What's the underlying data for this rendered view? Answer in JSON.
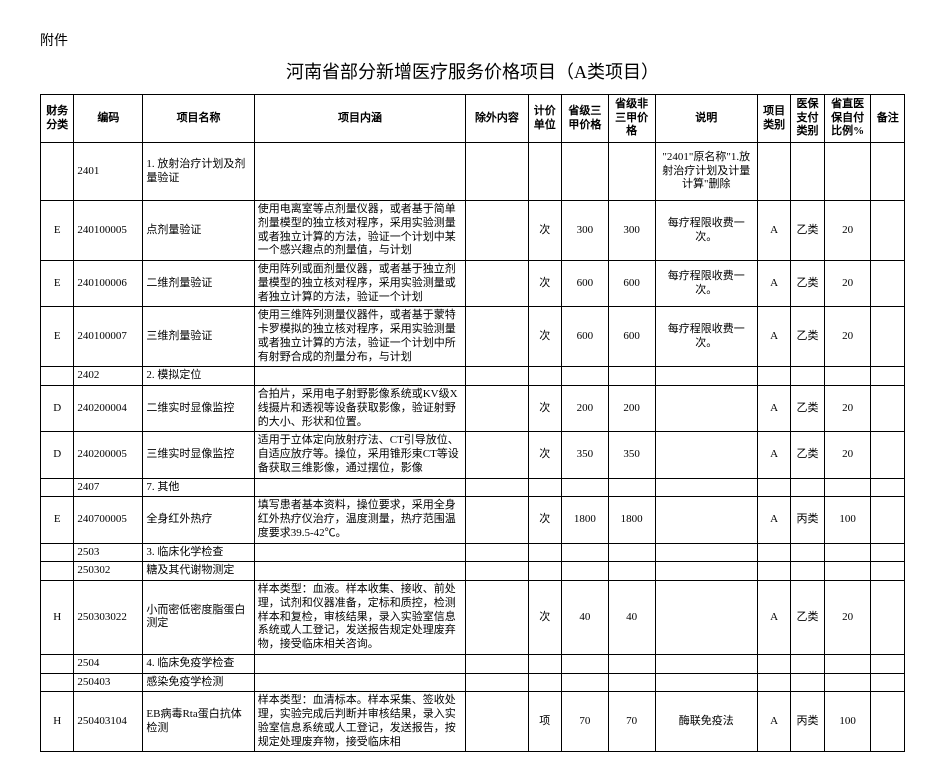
{
  "attachment_label": "附件",
  "title": "河南省部分新增医疗服务价格项目（A类项目）",
  "columns": [
    "财务分类",
    "编码",
    "项目名称",
    "项目内涵",
    "除外内容",
    "计价单位",
    "省级三甲价格",
    "省级非三甲价格",
    "说明",
    "项目类别",
    "医保支付类别",
    "省直医保自付比例%",
    "备注"
  ],
  "rows": [
    {
      "cat": "",
      "code": "2401",
      "name": "1. 放射治疗计划及剂量验证",
      "content": "",
      "exclude": "",
      "unit": "",
      "p1": "",
      "p2": "",
      "desc": "\"2401\"原名称\"1.放射治疗计划及计量计算\"删除",
      "itemcat": "",
      "paycat": "",
      "ratio": "",
      "note": "",
      "rowcls": "row-tall-4"
    },
    {
      "cat": "E",
      "code": "240100005",
      "name": "点剂量验证",
      "content": "使用电离室等点剂量仪器，或者基于简单剂量模型的独立核对程序，采用实验测量或者独立计算的方法，验证一个计划中某一个感兴趣点的剂量值，与计划",
      "exclude": "",
      "unit": "次",
      "p1": "300",
      "p2": "300",
      "desc": "每疗程限收费一次。",
      "itemcat": "A",
      "paycat": "乙类",
      "ratio": "20",
      "note": "",
      "rowcls": "row-tall-4"
    },
    {
      "cat": "E",
      "code": "240100006",
      "name": "二维剂量验证",
      "content": "使用阵列或面剂量仪器，或者基于独立剂量模型的独立核对程序，采用实验测量或者独立计算的方法，验证一个计划",
      "exclude": "",
      "unit": "次",
      "p1": "600",
      "p2": "600",
      "desc": "每疗程限收费一次。",
      "itemcat": "A",
      "paycat": "乙类",
      "ratio": "20",
      "note": "",
      "rowcls": "row-tall-3"
    },
    {
      "cat": "E",
      "code": "240100007",
      "name": "三维剂量验证",
      "content": "使用三维阵列测量仪器件，或者基于蒙特卡罗模拟的独立核对程序，采用实验测量或者独立计算的方法，验证一个计划中所有射野合成的剂量分布，与计划",
      "exclude": "",
      "unit": "次",
      "p1": "600",
      "p2": "600",
      "desc": "每疗程限收费一次。",
      "itemcat": "A",
      "paycat": "乙类",
      "ratio": "20",
      "note": "",
      "rowcls": "row-tall-4"
    },
    {
      "cat": "",
      "code": "2402",
      "name": "2. 模拟定位",
      "content": "",
      "exclude": "",
      "unit": "",
      "p1": "",
      "p2": "",
      "desc": "",
      "itemcat": "",
      "paycat": "",
      "ratio": "",
      "note": "",
      "rowcls": "row-short"
    },
    {
      "cat": "D",
      "code": "240200004",
      "name": "二维实时显像监控",
      "content": "合拍片，采用电子射野影像系统或KV级X线摄片和透视等设备获取影像，验证射野的大小、形状和位置。",
      "exclude": "",
      "unit": "次",
      "p1": "200",
      "p2": "200",
      "desc": "",
      "itemcat": "A",
      "paycat": "乙类",
      "ratio": "20",
      "note": "",
      "rowcls": "row-tall-3"
    },
    {
      "cat": "D",
      "code": "240200005",
      "name": "三维实时显像监控",
      "content": "适用于立体定向放射疗法、CT引导放位、自适应放疗等。操位，采用锥形束CT等设备获取三维影像，通过摆位，影像",
      "exclude": "",
      "unit": "次",
      "p1": "350",
      "p2": "350",
      "desc": "",
      "itemcat": "A",
      "paycat": "乙类",
      "ratio": "20",
      "note": "",
      "rowcls": "row-tall-3"
    },
    {
      "cat": "",
      "code": "2407",
      "name": "7. 其他",
      "content": "",
      "exclude": "",
      "unit": "",
      "p1": "",
      "p2": "",
      "desc": "",
      "itemcat": "",
      "paycat": "",
      "ratio": "",
      "note": "",
      "rowcls": "row-short"
    },
    {
      "cat": "E",
      "code": "240700005",
      "name": "全身红外热疗",
      "content": "填写患者基本资料，操位要求，采用全身红外热疗仪治疗，温度测量，热疗范围温度要求39.5-42℃。",
      "exclude": "",
      "unit": "次",
      "p1": "1800",
      "p2": "1800",
      "desc": "",
      "itemcat": "A",
      "paycat": "丙类",
      "ratio": "100",
      "note": "",
      "rowcls": "row-tall-3"
    },
    {
      "cat": "",
      "code": "2503",
      "name": "3. 临床化学检查",
      "content": "",
      "exclude": "",
      "unit": "",
      "p1": "",
      "p2": "",
      "desc": "",
      "itemcat": "",
      "paycat": "",
      "ratio": "",
      "note": "",
      "rowcls": "row-short"
    },
    {
      "cat": "",
      "code": "250302",
      "name": "糖及其代谢物测定",
      "content": "",
      "exclude": "",
      "unit": "",
      "p1": "",
      "p2": "",
      "desc": "",
      "itemcat": "",
      "paycat": "",
      "ratio": "",
      "note": "",
      "rowcls": "row-short"
    },
    {
      "cat": "H",
      "code": "250303022",
      "name": "小而密低密度脂蛋白测定",
      "content": "样本类型：血液。样本收集、接收、前处理，试剂和仪器准备，定标和质控，检测样本和复检，审核结果，录入实验室信息系统或人工登记，发送报告规定处理废弃物，接受临床相关咨询。",
      "exclude": "",
      "unit": "次",
      "p1": "40",
      "p2": "40",
      "desc": "",
      "itemcat": "A",
      "paycat": "乙类",
      "ratio": "20",
      "note": "",
      "rowcls": "row-tall-4"
    },
    {
      "cat": "",
      "code": "2504",
      "name": "4. 临床免疫学检查",
      "content": "",
      "exclude": "",
      "unit": "",
      "p1": "",
      "p2": "",
      "desc": "",
      "itemcat": "",
      "paycat": "",
      "ratio": "",
      "note": "",
      "rowcls": "row-short"
    },
    {
      "cat": "",
      "code": "250403",
      "name": "感染免疫学检测",
      "content": "",
      "exclude": "",
      "unit": "",
      "p1": "",
      "p2": "",
      "desc": "",
      "itemcat": "",
      "paycat": "",
      "ratio": "",
      "note": "",
      "rowcls": "row-short"
    },
    {
      "cat": "H",
      "code": "250403104",
      "name": "EB病毒Rta蛋白抗体检测",
      "content": "样本类型：血清标本。样本采集、签收处理，实验完成后判断并审核结果，录入实验室信息系统或人工登记，发送报告，按规定处理废弃物，接受临床相",
      "exclude": "",
      "unit": "项",
      "p1": "70",
      "p2": "70",
      "desc": "酶联免疫法",
      "itemcat": "A",
      "paycat": "丙类",
      "ratio": "100",
      "note": "",
      "rowcls": "row-tall-4"
    }
  ]
}
